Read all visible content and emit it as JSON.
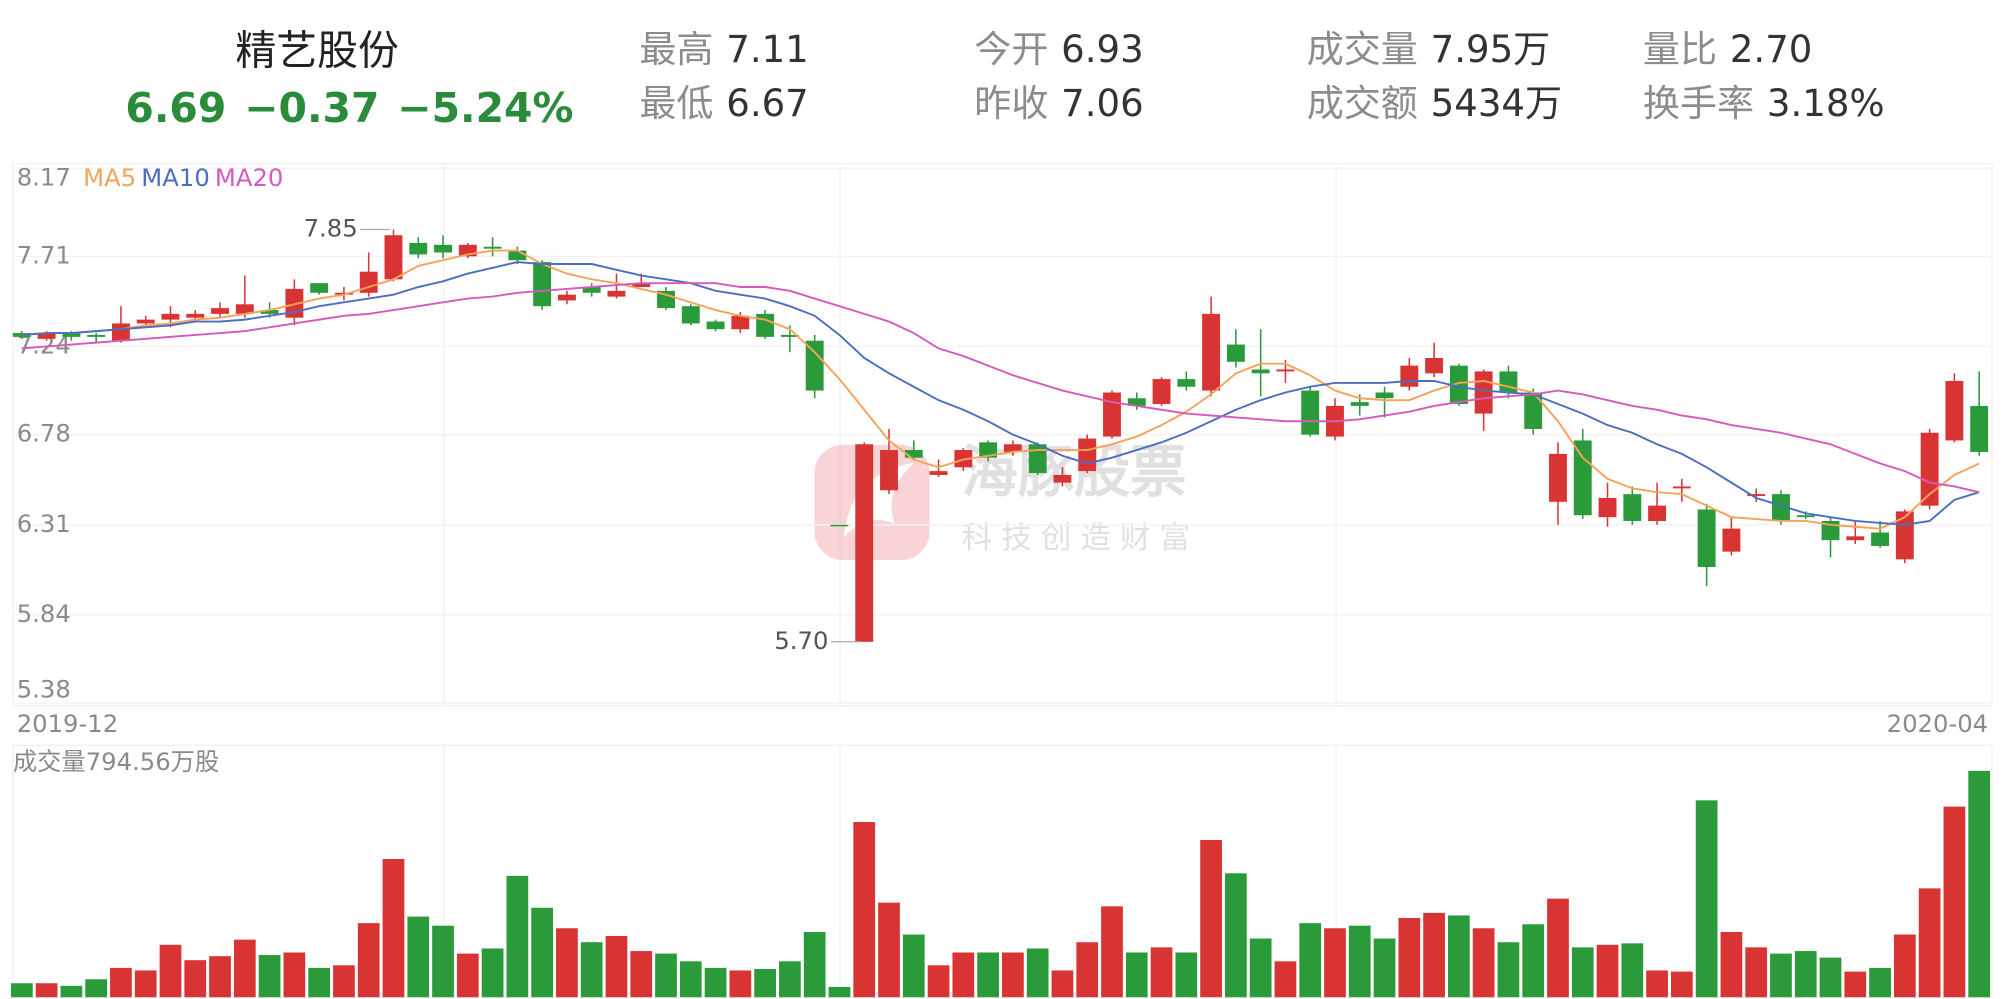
{
  "header": {
    "name": "精艺股份",
    "price": "6.69",
    "change": "−0.37",
    "change_pct": "−5.24%",
    "quotes": [
      {
        "label": "最高",
        "value": "7.11"
      },
      {
        "label": "最低",
        "value": "6.67"
      },
      {
        "label": "今开",
        "value": "6.93"
      },
      {
        "label": "昨收",
        "value": "7.06"
      },
      {
        "label": "成交量",
        "value": "7.95万"
      },
      {
        "label": "成交额",
        "value": "5434万"
      },
      {
        "label": "量比",
        "value": "2.70"
      },
      {
        "label": "换手率",
        "value": "3.18%"
      }
    ]
  },
  "watermark": {
    "title": "海豚股票",
    "slogan": "科技创造财富"
  },
  "chart_data": {
    "type": "candlestick",
    "categories": [
      "2019-12",
      null,
      null,
      null,
      null,
      null,
      null,
      null,
      null,
      null,
      null,
      null,
      null,
      null,
      null,
      null,
      null,
      null,
      null,
      null,
      null,
      null,
      null,
      null,
      null,
      null,
      null,
      null,
      null,
      null,
      null,
      null,
      null,
      null,
      null,
      null,
      null,
      null,
      null,
      null,
      null,
      null,
      null,
      null,
      null,
      null,
      null,
      null,
      null,
      null,
      null,
      null,
      null,
      null,
      null,
      null,
      null,
      null,
      null,
      null,
      null,
      null,
      null,
      null,
      null,
      null,
      null,
      null,
      null,
      null,
      null,
      null,
      null,
      null,
      null,
      null,
      null,
      null,
      null,
      "2020-04"
    ],
    "open": [
      7.31,
      7.28,
      7.31,
      7.3,
      7.27,
      7.36,
      7.38,
      7.39,
      7.41,
      7.41,
      7.43,
      7.39,
      7.57,
      7.51,
      7.52,
      7.59,
      7.78,
      7.77,
      7.71,
      7.76,
      7.74,
      7.68,
      7.48,
      7.55,
      7.5,
      7.55,
      7.53,
      7.45,
      7.37,
      7.33,
      7.41,
      7.3,
      7.27,
      6.31,
      5.7,
      6.49,
      6.7,
      6.57,
      6.61,
      6.74,
      6.69,
      6.73,
      6.53,
      6.59,
      6.77,
      6.97,
      6.94,
      7.07,
      7.01,
      7.25,
      7.12,
      7.11,
      7.01,
      6.77,
      6.95,
      7.0,
      7.03,
      7.1,
      7.14,
      6.89,
      7.11,
      7.0,
      6.43,
      6.75,
      6.35,
      6.47,
      6.33,
      6.5,
      6.39,
      6.17,
      6.46,
      6.47,
      6.36,
      6.33,
      6.23,
      6.27,
      6.13,
      6.41,
      6.75,
      6.93
    ],
    "high": [
      7.32,
      7.32,
      7.32,
      7.31,
      7.45,
      7.4,
      7.45,
      7.43,
      7.47,
      7.61,
      7.47,
      7.59,
      7.57,
      7.55,
      7.73,
      7.85,
      7.81,
      7.82,
      7.78,
      7.81,
      7.76,
      7.69,
      7.53,
      7.57,
      7.62,
      7.62,
      7.55,
      7.46,
      7.38,
      7.42,
      7.43,
      7.35,
      7.3,
      6.31,
      6.74,
      6.81,
      6.75,
      6.65,
      6.71,
      6.75,
      6.75,
      6.74,
      6.61,
      6.78,
      7.01,
      7.0,
      7.08,
      7.11,
      7.5,
      7.33,
      7.33,
      7.17,
      7.03,
      6.97,
      6.99,
      7.03,
      7.18,
      7.26,
      7.15,
      7.12,
      7.14,
      7.02,
      6.74,
      6.81,
      6.53,
      6.51,
      6.53,
      6.55,
      6.42,
      6.35,
      6.5,
      6.49,
      6.38,
      6.35,
      6.33,
      6.33,
      6.39,
      6.81,
      7.1,
      7.11
    ],
    "low": [
      7.28,
      7.27,
      7.27,
      7.26,
      7.26,
      7.34,
      7.34,
      7.37,
      7.39,
      7.39,
      7.39,
      7.35,
      7.51,
      7.48,
      7.5,
      7.58,
      7.7,
      7.7,
      7.7,
      7.71,
      7.67,
      7.43,
      7.46,
      7.5,
      7.49,
      7.55,
      7.43,
      7.35,
      7.32,
      7.31,
      7.28,
      7.21,
      6.97,
      6.31,
      5.7,
      6.47,
      6.65,
      6.56,
      6.59,
      6.64,
      6.67,
      6.57,
      6.51,
      6.58,
      6.76,
      6.91,
      6.93,
      7.01,
      6.98,
      7.13,
      6.98,
      7.05,
      6.77,
      6.75,
      6.88,
      6.87,
      7.01,
      7.08,
      6.93,
      6.8,
      6.97,
      6.78,
      6.31,
      6.34,
      6.3,
      6.31,
      6.31,
      6.43,
      5.99,
      6.15,
      6.43,
      6.31,
      6.34,
      6.14,
      6.21,
      6.19,
      6.11,
      6.39,
      6.74,
      6.67
    ],
    "close": [
      7.29,
      7.31,
      7.29,
      7.29,
      7.36,
      7.38,
      7.41,
      7.41,
      7.44,
      7.46,
      7.41,
      7.54,
      7.52,
      7.52,
      7.63,
      7.82,
      7.72,
      7.73,
      7.77,
      7.75,
      7.69,
      7.45,
      7.51,
      7.52,
      7.53,
      7.57,
      7.44,
      7.36,
      7.33,
      7.4,
      7.29,
      7.29,
      7.01,
      6.31,
      6.73,
      6.7,
      6.66,
      6.59,
      6.7,
      6.66,
      6.73,
      6.58,
      6.57,
      6.76,
      7.0,
      6.93,
      7.07,
      7.03,
      7.41,
      7.16,
      7.1,
      7.12,
      6.78,
      6.93,
      6.93,
      6.97,
      7.14,
      7.18,
      6.94,
      7.11,
      7.0,
      6.81,
      6.68,
      6.36,
      6.45,
      6.33,
      6.41,
      6.51,
      6.09,
      6.29,
      6.47,
      6.33,
      6.35,
      6.23,
      6.25,
      6.2,
      6.38,
      6.79,
      7.06,
      6.69
    ],
    "up_color": "#d93434",
    "down_color": "#2a9a3a",
    "high_label": "7.85",
    "low_label": "5.70",
    "ylim": [
      5.38,
      8.17
    ],
    "yticks": [
      8.17,
      7.71,
      7.24,
      6.78,
      6.31,
      5.84,
      5.38
    ],
    "grid": true,
    "series": [
      {
        "name": "MA5",
        "color": "#f5a35a",
        "values": [
          7.3,
          7.31,
          7.31,
          7.32,
          7.33,
          7.35,
          7.36,
          7.38,
          7.39,
          7.41,
          7.43,
          7.46,
          7.49,
          7.51,
          7.55,
          7.59,
          7.66,
          7.69,
          7.72,
          7.74,
          7.74,
          7.67,
          7.62,
          7.59,
          7.57,
          7.54,
          7.51,
          7.47,
          7.43,
          7.4,
          7.38,
          7.33,
          7.21,
          7.07,
          6.91,
          6.75,
          6.65,
          6.61,
          6.65,
          6.67,
          6.69,
          6.7,
          6.7,
          6.7,
          6.73,
          6.77,
          6.83,
          6.9,
          6.99,
          7.1,
          7.15,
          7.15,
          7.09,
          7.01,
          6.97,
          6.96,
          6.96,
          7.01,
          7.05,
          7.06,
          7.03,
          7.0,
          6.85,
          6.66,
          6.55,
          6.5,
          6.48,
          6.47,
          6.41,
          6.35,
          6.34,
          6.33,
          6.33,
          6.31,
          6.3,
          6.29,
          6.35,
          6.47,
          6.57,
          6.63
        ]
      },
      {
        "name": "MA10",
        "color": "#4a6fc0",
        "values": [
          7.3,
          7.31,
          7.31,
          7.32,
          7.33,
          7.34,
          7.35,
          7.37,
          7.37,
          7.38,
          7.4,
          7.42,
          7.45,
          7.47,
          7.49,
          7.51,
          7.55,
          7.58,
          7.62,
          7.65,
          7.68,
          7.67,
          7.67,
          7.67,
          7.64,
          7.61,
          7.59,
          7.57,
          7.53,
          7.51,
          7.49,
          7.45,
          7.4,
          7.3,
          7.18,
          7.1,
          7.03,
          6.96,
          6.91,
          6.85,
          6.78,
          6.73,
          6.67,
          6.63,
          6.66,
          6.7,
          6.74,
          6.79,
          6.85,
          6.91,
          6.96,
          7.0,
          7.03,
          7.05,
          7.05,
          7.05,
          7.06,
          7.06,
          7.03,
          7.01,
          7.0,
          6.99,
          6.94,
          6.89,
          6.83,
          6.79,
          6.73,
          6.68,
          6.61,
          6.53,
          6.45,
          6.41,
          6.37,
          6.35,
          6.33,
          6.32,
          6.31,
          6.33,
          6.44,
          6.48
        ]
      },
      {
        "name": "MA20",
        "color": "#d45bbd",
        "values": [
          7.23,
          7.24,
          7.25,
          7.26,
          7.27,
          7.28,
          7.29,
          7.3,
          7.31,
          7.32,
          7.34,
          7.36,
          7.38,
          7.4,
          7.41,
          7.43,
          7.45,
          7.47,
          7.49,
          7.5,
          7.52,
          7.53,
          7.54,
          7.55,
          7.56,
          7.57,
          7.57,
          7.57,
          7.57,
          7.55,
          7.55,
          7.53,
          7.49,
          7.45,
          7.41,
          7.37,
          7.31,
          7.23,
          7.19,
          7.14,
          7.09,
          7.05,
          7.01,
          6.98,
          6.95,
          6.93,
          6.91,
          6.89,
          6.88,
          6.87,
          6.86,
          6.85,
          6.85,
          6.85,
          6.86,
          6.88,
          6.9,
          6.93,
          6.95,
          6.97,
          6.98,
          6.99,
          7.01,
          6.99,
          6.96,
          6.93,
          6.91,
          6.88,
          6.86,
          6.83,
          6.81,
          6.79,
          6.76,
          6.73,
          6.68,
          6.63,
          6.59,
          6.53,
          6.51,
          6.48
        ]
      }
    ],
    "volume": {
      "label": "成交量794.56万股",
      "ylim": [
        0,
        884
      ],
      "values": [
        49,
        49,
        40,
        63,
        103,
        94,
        184,
        130,
        144,
        202,
        148,
        157,
        103,
        112,
        260,
        485,
        283,
        251,
        153,
        171,
        426,
        314,
        242,
        193,
        215,
        162,
        153,
        126,
        103,
        94,
        99,
        126,
        229,
        36,
        615,
        332,
        220,
        112,
        157,
        157,
        157,
        171,
        94,
        193,
        319,
        157,
        175,
        157,
        552,
        435,
        206,
        126,
        260,
        242,
        251,
        206,
        278,
        296,
        287,
        242,
        193,
        256,
        346,
        175,
        184,
        189,
        94,
        90,
        691,
        229,
        175,
        153,
        162,
        139,
        90,
        103,
        220,
        382,
        669,
        794.56
      ]
    }
  }
}
